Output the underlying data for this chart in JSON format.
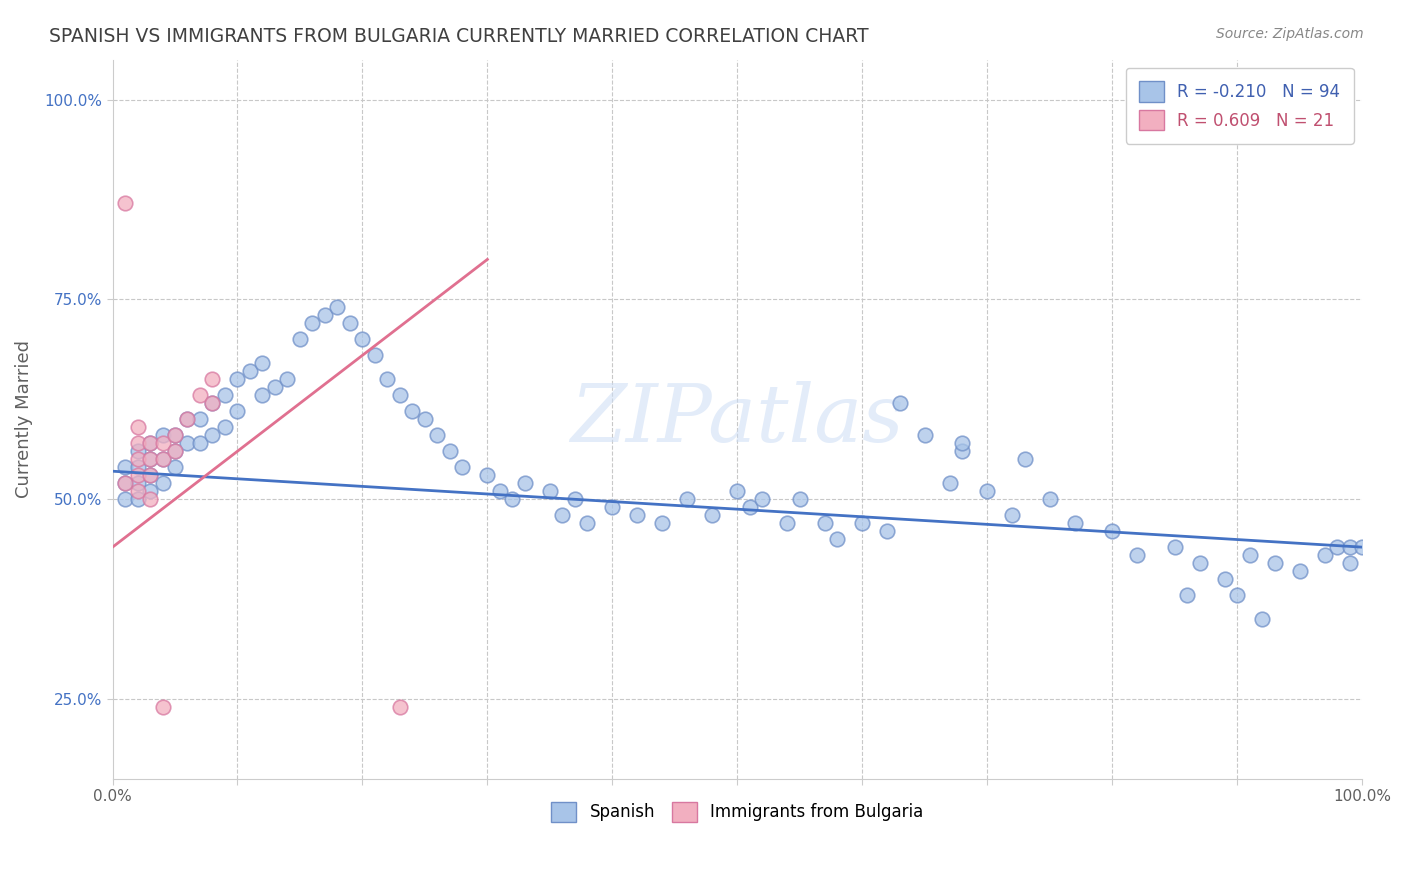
{
  "title": "SPANISH VS IMMIGRANTS FROM BULGARIA CURRENTLY MARRIED CORRELATION CHART",
  "source": "Source: ZipAtlas.com",
  "ylabel": "Currently Married",
  "watermark": "ZIPatlas",
  "legend_blue_r": "R = -0.210",
  "legend_blue_n": "N = 94",
  "legend_pink_r": "R = 0.609",
  "legend_pink_n": "N = 21",
  "blue_color": "#a8c4e8",
  "pink_color": "#f2afc0",
  "blue_line_color": "#4472c4",
  "pink_line_color": "#e07090",
  "bg_color": "#ffffff",
  "grid_color": "#c8c8c8",
  "title_color": "#404040",
  "blue_scatter_x": [
    0.01,
    0.01,
    0.01,
    0.02,
    0.02,
    0.02,
    0.02,
    0.03,
    0.03,
    0.03,
    0.03,
    0.04,
    0.04,
    0.04,
    0.05,
    0.05,
    0.05,
    0.06,
    0.06,
    0.07,
    0.07,
    0.08,
    0.08,
    0.09,
    0.09,
    0.1,
    0.1,
    0.11,
    0.12,
    0.12,
    0.13,
    0.14,
    0.15,
    0.16,
    0.17,
    0.18,
    0.19,
    0.2,
    0.21,
    0.22,
    0.23,
    0.24,
    0.25,
    0.26,
    0.27,
    0.28,
    0.3,
    0.31,
    0.32,
    0.33,
    0.35,
    0.36,
    0.37,
    0.38,
    0.4,
    0.42,
    0.44,
    0.46,
    0.48,
    0.5,
    0.51,
    0.52,
    0.54,
    0.55,
    0.57,
    0.58,
    0.6,
    0.62,
    0.63,
    0.65,
    0.67,
    0.68,
    0.7,
    0.72,
    0.75,
    0.77,
    0.8,
    0.82,
    0.85,
    0.87,
    0.89,
    0.91,
    0.93,
    0.95,
    0.97,
    0.98,
    0.99,
    0.99,
    1.0,
    0.68,
    0.73,
    0.86,
    0.9,
    0.92
  ],
  "blue_scatter_y": [
    0.54,
    0.52,
    0.5,
    0.56,
    0.54,
    0.52,
    0.5,
    0.57,
    0.55,
    0.53,
    0.51,
    0.58,
    0.55,
    0.52,
    0.58,
    0.56,
    0.54,
    0.6,
    0.57,
    0.6,
    0.57,
    0.62,
    0.58,
    0.63,
    0.59,
    0.65,
    0.61,
    0.66,
    0.67,
    0.63,
    0.64,
    0.65,
    0.7,
    0.72,
    0.73,
    0.74,
    0.72,
    0.7,
    0.68,
    0.65,
    0.63,
    0.61,
    0.6,
    0.58,
    0.56,
    0.54,
    0.53,
    0.51,
    0.5,
    0.52,
    0.51,
    0.48,
    0.5,
    0.47,
    0.49,
    0.48,
    0.47,
    0.5,
    0.48,
    0.51,
    0.49,
    0.5,
    0.47,
    0.5,
    0.47,
    0.45,
    0.47,
    0.46,
    0.62,
    0.58,
    0.52,
    0.56,
    0.51,
    0.48,
    0.5,
    0.47,
    0.46,
    0.43,
    0.44,
    0.42,
    0.4,
    0.43,
    0.42,
    0.41,
    0.43,
    0.44,
    0.44,
    0.42,
    0.44,
    0.57,
    0.55,
    0.38,
    0.38,
    0.35
  ],
  "pink_scatter_x": [
    0.01,
    0.01,
    0.02,
    0.02,
    0.02,
    0.02,
    0.02,
    0.03,
    0.03,
    0.03,
    0.03,
    0.04,
    0.04,
    0.05,
    0.05,
    0.06,
    0.07,
    0.08,
    0.08,
    0.23,
    0.04
  ],
  "pink_scatter_y": [
    0.87,
    0.52,
    0.59,
    0.57,
    0.55,
    0.53,
    0.51,
    0.57,
    0.55,
    0.53,
    0.5,
    0.57,
    0.55,
    0.58,
    0.56,
    0.6,
    0.63,
    0.65,
    0.62,
    0.24,
    0.24
  ],
  "blue_trend_x0": 0.0,
  "blue_trend_x1": 1.0,
  "blue_trend_y0": 0.535,
  "blue_trend_y1": 0.44,
  "pink_trend_x0": 0.0,
  "pink_trend_x1": 0.3,
  "pink_trend_y0": 0.44,
  "pink_trend_y1": 0.8,
  "xmin": 0.0,
  "xmax": 1.0,
  "ymin": 0.15,
  "ymax": 1.05,
  "yticks": [
    0.25,
    0.5,
    0.75,
    1.0
  ],
  "ytick_labels": [
    "25.0%",
    "50.0%",
    "75.0%",
    "100.0%"
  ]
}
